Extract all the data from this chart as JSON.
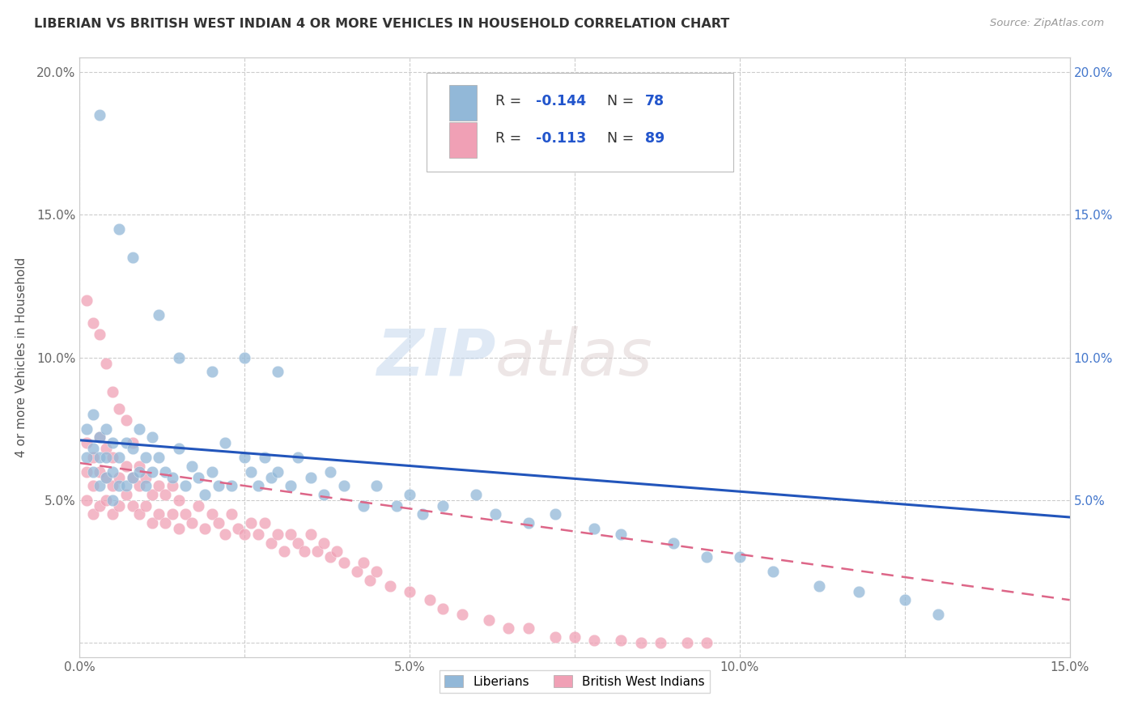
{
  "title": "LIBERIAN VS BRITISH WEST INDIAN 4 OR MORE VEHICLES IN HOUSEHOLD CORRELATION CHART",
  "source": "Source: ZipAtlas.com",
  "ylabel": "4 or more Vehicles in Household",
  "xmin": 0.0,
  "xmax": 0.15,
  "ymin": -0.005,
  "ymax": 0.205,
  "legend_labels": [
    "Liberians",
    "British West Indians"
  ],
  "blue_color": "#92b8d8",
  "pink_color": "#f0a0b5",
  "blue_line_color": "#2255bb",
  "pink_line_color": "#dd6688",
  "R_blue": -0.144,
  "N_blue": 78,
  "R_pink": -0.113,
  "N_pink": 89,
  "watermark_zip": "ZIP",
  "watermark_atlas": "atlas",
  "blue_line_x0": 0.0,
  "blue_line_y0": 0.071,
  "blue_line_x1": 0.15,
  "blue_line_y1": 0.044,
  "pink_line_x0": 0.0,
  "pink_line_y0": 0.063,
  "pink_line_x1": 0.15,
  "pink_line_y1": 0.015,
  "blue_x": [
    0.001,
    0.001,
    0.002,
    0.002,
    0.002,
    0.003,
    0.003,
    0.003,
    0.004,
    0.004,
    0.004,
    0.005,
    0.005,
    0.005,
    0.006,
    0.006,
    0.007,
    0.007,
    0.008,
    0.008,
    0.009,
    0.009,
    0.01,
    0.01,
    0.011,
    0.011,
    0.012,
    0.013,
    0.014,
    0.015,
    0.016,
    0.017,
    0.018,
    0.019,
    0.02,
    0.021,
    0.022,
    0.023,
    0.025,
    0.026,
    0.027,
    0.028,
    0.029,
    0.03,
    0.032,
    0.033,
    0.035,
    0.037,
    0.038,
    0.04,
    0.043,
    0.045,
    0.048,
    0.05,
    0.052,
    0.055,
    0.06,
    0.063,
    0.068,
    0.072,
    0.078,
    0.082,
    0.09,
    0.095,
    0.1,
    0.105,
    0.112,
    0.118,
    0.125,
    0.13,
    0.003,
    0.006,
    0.008,
    0.012,
    0.015,
    0.02,
    0.025,
    0.03
  ],
  "blue_y": [
    0.065,
    0.075,
    0.06,
    0.068,
    0.08,
    0.055,
    0.065,
    0.072,
    0.058,
    0.065,
    0.075,
    0.05,
    0.06,
    0.07,
    0.055,
    0.065,
    0.055,
    0.07,
    0.058,
    0.068,
    0.06,
    0.075,
    0.055,
    0.065,
    0.06,
    0.072,
    0.065,
    0.06,
    0.058,
    0.068,
    0.055,
    0.062,
    0.058,
    0.052,
    0.06,
    0.055,
    0.07,
    0.055,
    0.065,
    0.06,
    0.055,
    0.065,
    0.058,
    0.06,
    0.055,
    0.065,
    0.058,
    0.052,
    0.06,
    0.055,
    0.048,
    0.055,
    0.048,
    0.052,
    0.045,
    0.048,
    0.052,
    0.045,
    0.042,
    0.045,
    0.04,
    0.038,
    0.035,
    0.03,
    0.03,
    0.025,
    0.02,
    0.018,
    0.015,
    0.01,
    0.185,
    0.145,
    0.135,
    0.115,
    0.1,
    0.095,
    0.1,
    0.095
  ],
  "pink_x": [
    0.001,
    0.001,
    0.001,
    0.002,
    0.002,
    0.002,
    0.003,
    0.003,
    0.003,
    0.004,
    0.004,
    0.004,
    0.005,
    0.005,
    0.005,
    0.006,
    0.006,
    0.007,
    0.007,
    0.008,
    0.008,
    0.009,
    0.009,
    0.01,
    0.01,
    0.011,
    0.011,
    0.012,
    0.012,
    0.013,
    0.013,
    0.014,
    0.014,
    0.015,
    0.015,
    0.016,
    0.017,
    0.018,
    0.019,
    0.02,
    0.021,
    0.022,
    0.023,
    0.024,
    0.025,
    0.026,
    0.027,
    0.028,
    0.029,
    0.03,
    0.031,
    0.032,
    0.033,
    0.034,
    0.035,
    0.036,
    0.037,
    0.038,
    0.039,
    0.04,
    0.042,
    0.043,
    0.044,
    0.045,
    0.047,
    0.05,
    0.053,
    0.055,
    0.058,
    0.062,
    0.065,
    0.068,
    0.072,
    0.075,
    0.078,
    0.082,
    0.085,
    0.088,
    0.092,
    0.095,
    0.001,
    0.002,
    0.003,
    0.004,
    0.005,
    0.006,
    0.007,
    0.008,
    0.009
  ],
  "pink_y": [
    0.05,
    0.06,
    0.07,
    0.045,
    0.055,
    0.065,
    0.048,
    0.06,
    0.072,
    0.05,
    0.058,
    0.068,
    0.045,
    0.055,
    0.065,
    0.048,
    0.058,
    0.052,
    0.062,
    0.048,
    0.058,
    0.045,
    0.055,
    0.048,
    0.058,
    0.042,
    0.052,
    0.045,
    0.055,
    0.042,
    0.052,
    0.045,
    0.055,
    0.04,
    0.05,
    0.045,
    0.042,
    0.048,
    0.04,
    0.045,
    0.042,
    0.038,
    0.045,
    0.04,
    0.038,
    0.042,
    0.038,
    0.042,
    0.035,
    0.038,
    0.032,
    0.038,
    0.035,
    0.032,
    0.038,
    0.032,
    0.035,
    0.03,
    0.032,
    0.028,
    0.025,
    0.028,
    0.022,
    0.025,
    0.02,
    0.018,
    0.015,
    0.012,
    0.01,
    0.008,
    0.005,
    0.005,
    0.002,
    0.002,
    0.001,
    0.001,
    0.0,
    0.0,
    0.0,
    0.0,
    0.12,
    0.112,
    0.108,
    0.098,
    0.088,
    0.082,
    0.078,
    0.07,
    0.062
  ]
}
